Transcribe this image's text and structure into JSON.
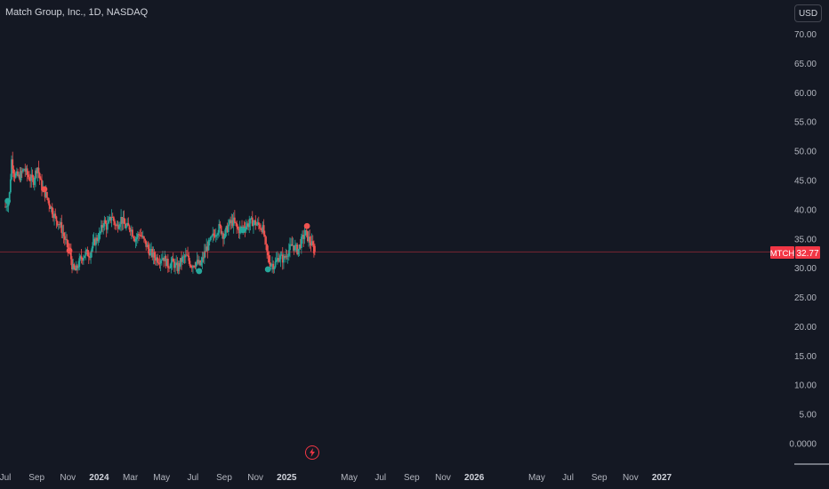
{
  "header": {
    "title": "Match Group, Inc., 1D, NASDAQ",
    "currency": "USD"
  },
  "price_tag": {
    "symbol": "MTCH",
    "price": "32.77"
  },
  "colors": {
    "background": "#141823",
    "up": "#26a69a",
    "down": "#ef5350",
    "price_tag": "#f23645",
    "text": "#b2b5be"
  },
  "icons": {
    "event": "lightning-icon"
  },
  "chart_data": {
    "type": "candlestick",
    "title": "Match Group, Inc., 1D, NASDAQ",
    "y_ticks": [
      "70.00",
      "65.00",
      "60.00",
      "55.00",
      "50.00",
      "45.00",
      "40.00",
      "35.00",
      "30.00",
      "25.00",
      "20.00",
      "15.00",
      "10.00",
      "5.00",
      "0.0000"
    ],
    "y_tick_values": [
      70,
      65,
      60,
      55,
      50,
      45,
      40,
      35,
      30,
      25,
      20,
      15,
      10,
      5,
      0
    ],
    "ylim": [
      0,
      70
    ],
    "x_ticks": [
      {
        "label": "Jul",
        "t": 0
      },
      {
        "label": "Sep",
        "t": 2
      },
      {
        "label": "Nov",
        "t": 4
      },
      {
        "label": "2024",
        "t": 6,
        "major": true
      },
      {
        "label": "Mar",
        "t": 8
      },
      {
        "label": "May",
        "t": 10
      },
      {
        "label": "Jul",
        "t": 12
      },
      {
        "label": "Sep",
        "t": 14
      },
      {
        "label": "Nov",
        "t": 16
      },
      {
        "label": "2025",
        "t": 18,
        "major": true
      },
      {
        "label": "May",
        "t": 22
      },
      {
        "label": "Jul",
        "t": 24
      },
      {
        "label": "Sep",
        "t": 26
      },
      {
        "label": "Nov",
        "t": 28
      },
      {
        "label": "2026",
        "t": 30,
        "major": true
      },
      {
        "label": "May",
        "t": 34
      },
      {
        "label": "Jul",
        "t": 36
      },
      {
        "label": "Sep",
        "t": 38
      },
      {
        "label": "Nov",
        "t": 40
      },
      {
        "label": "2027",
        "t": 42,
        "major": true
      }
    ],
    "x_unit": "months since Jul 2023",
    "close_path": [
      [
        0.0,
        40.5
      ],
      [
        0.25,
        42
      ],
      [
        0.4,
        48.5
      ],
      [
        0.6,
        46
      ],
      [
        0.9,
        45.5
      ],
      [
        1.2,
        47
      ],
      [
        1.5,
        45.5
      ],
      [
        1.8,
        45
      ],
      [
        2.05,
        47.5
      ],
      [
        2.3,
        44
      ],
      [
        2.6,
        42.5
      ],
      [
        2.9,
        40.5
      ],
      [
        3.2,
        38.5
      ],
      [
        3.5,
        37.5
      ],
      [
        3.8,
        35
      ],
      [
        4.0,
        33.5
      ],
      [
        4.15,
        32.5
      ],
      [
        4.3,
        30
      ],
      [
        4.5,
        29.5
      ],
      [
        4.8,
        31.5
      ],
      [
        5.1,
        32.5
      ],
      [
        5.4,
        32.5
      ],
      [
        5.7,
        34.5
      ],
      [
        6.0,
        35.5
      ],
      [
        6.3,
        38
      ],
      [
        6.5,
        37
      ],
      [
        6.8,
        39
      ],
      [
        7.1,
        37
      ],
      [
        7.4,
        38.5
      ],
      [
        7.7,
        37
      ],
      [
        8.0,
        37
      ],
      [
        8.3,
        35
      ],
      [
        8.6,
        36
      ],
      [
        8.9,
        34.5
      ],
      [
        9.2,
        33
      ],
      [
        9.5,
        32
      ],
      [
        9.8,
        31.5
      ],
      [
        10.1,
        32
      ],
      [
        10.4,
        30.5
      ],
      [
        10.7,
        31
      ],
      [
        11.0,
        30
      ],
      [
        11.3,
        31.5
      ],
      [
        11.6,
        32
      ],
      [
        11.9,
        30.5
      ],
      [
        12.2,
        31
      ],
      [
        12.5,
        30.5
      ],
      [
        12.8,
        33
      ],
      [
        13.1,
        34.5
      ],
      [
        13.4,
        36
      ],
      [
        13.7,
        37
      ],
      [
        14.0,
        35.5
      ],
      [
        14.3,
        37.5
      ],
      [
        14.6,
        38
      ],
      [
        14.9,
        36.5
      ],
      [
        15.2,
        37
      ],
      [
        15.5,
        37.5
      ],
      [
        15.8,
        38
      ],
      [
        16.1,
        37.5
      ],
      [
        16.4,
        37
      ],
      [
        16.5,
        36.5
      ],
      [
        16.7,
        33
      ],
      [
        16.9,
        31
      ],
      [
        17.2,
        30.5
      ],
      [
        17.5,
        32
      ],
      [
        17.8,
        31.5
      ],
      [
        18.1,
        33
      ],
      [
        18.4,
        34
      ],
      [
        18.7,
        33
      ],
      [
        19.0,
        35
      ],
      [
        19.2,
        36
      ],
      [
        19.4,
        35
      ],
      [
        19.6,
        34
      ],
      [
        19.8,
        32.77
      ]
    ],
    "last_price": 32.77,
    "markers": [
      {
        "t": 0.15,
        "price": 41.5,
        "side": "buy"
      },
      {
        "t": 2.5,
        "price": 43.5,
        "side": "sell"
      },
      {
        "t": 4.1,
        "price": 33,
        "side": "sell"
      },
      {
        "t": 12.4,
        "price": 29.5,
        "side": "buy"
      },
      {
        "t": 15.2,
        "price": 36.5,
        "side": "buy"
      },
      {
        "t": 16.8,
        "price": 29.8,
        "side": "buy"
      },
      {
        "t": 19.3,
        "price": 37.2,
        "side": "sell"
      }
    ]
  }
}
